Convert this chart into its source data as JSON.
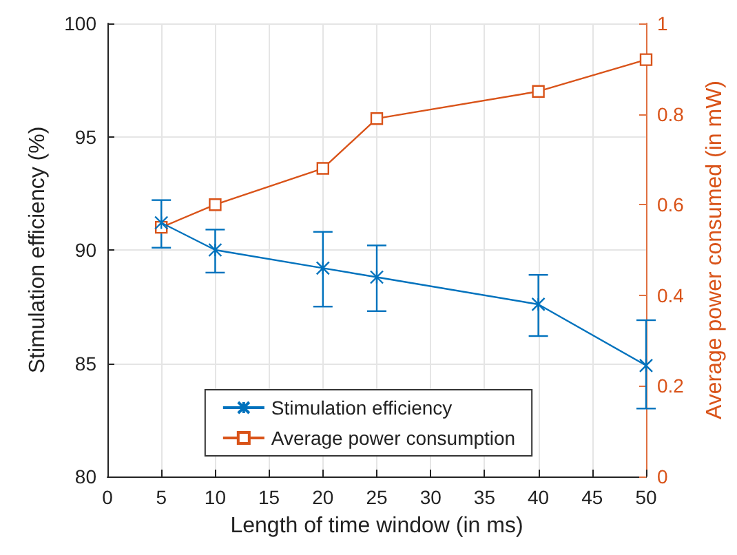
{
  "chart_data": {
    "type": "line",
    "xlabel": "Length of time window (in ms)",
    "ylabel": "Stimulation efficiency (%)",
    "y2label": "Average power consumed (in mW)",
    "x": [
      5,
      10,
      20,
      25,
      40,
      50
    ],
    "series": [
      {
        "name": "Stimulation efficiency",
        "color": "#0072bd",
        "marker": "cross",
        "values": [
          91.2,
          90.0,
          89.2,
          88.8,
          87.6,
          84.9
        ],
        "errors": [
          [
            90.1,
            92.2
          ],
          [
            89.0,
            90.9
          ],
          [
            87.5,
            90.8
          ],
          [
            87.3,
            90.2
          ],
          [
            86.2,
            88.9
          ],
          [
            83.0,
            86.9
          ]
        ]
      },
      {
        "name": "Average power consumption",
        "color": "#d95319",
        "marker": "square",
        "axis": "y2",
        "values": [
          0.55,
          0.6,
          0.68,
          0.79,
          0.85,
          0.92
        ]
      }
    ],
    "xlim": [
      0,
      50
    ],
    "xticks": [
      0,
      5,
      10,
      15,
      20,
      25,
      30,
      35,
      40,
      45,
      50
    ],
    "ylim": [
      80,
      100
    ],
    "yticks": [
      80,
      85,
      90,
      95,
      100
    ],
    "y2lim": [
      0,
      1
    ],
    "y2ticks": [
      0,
      0.2,
      0.4,
      0.6,
      0.8,
      1
    ],
    "grid": true,
    "legend": "bottom"
  }
}
